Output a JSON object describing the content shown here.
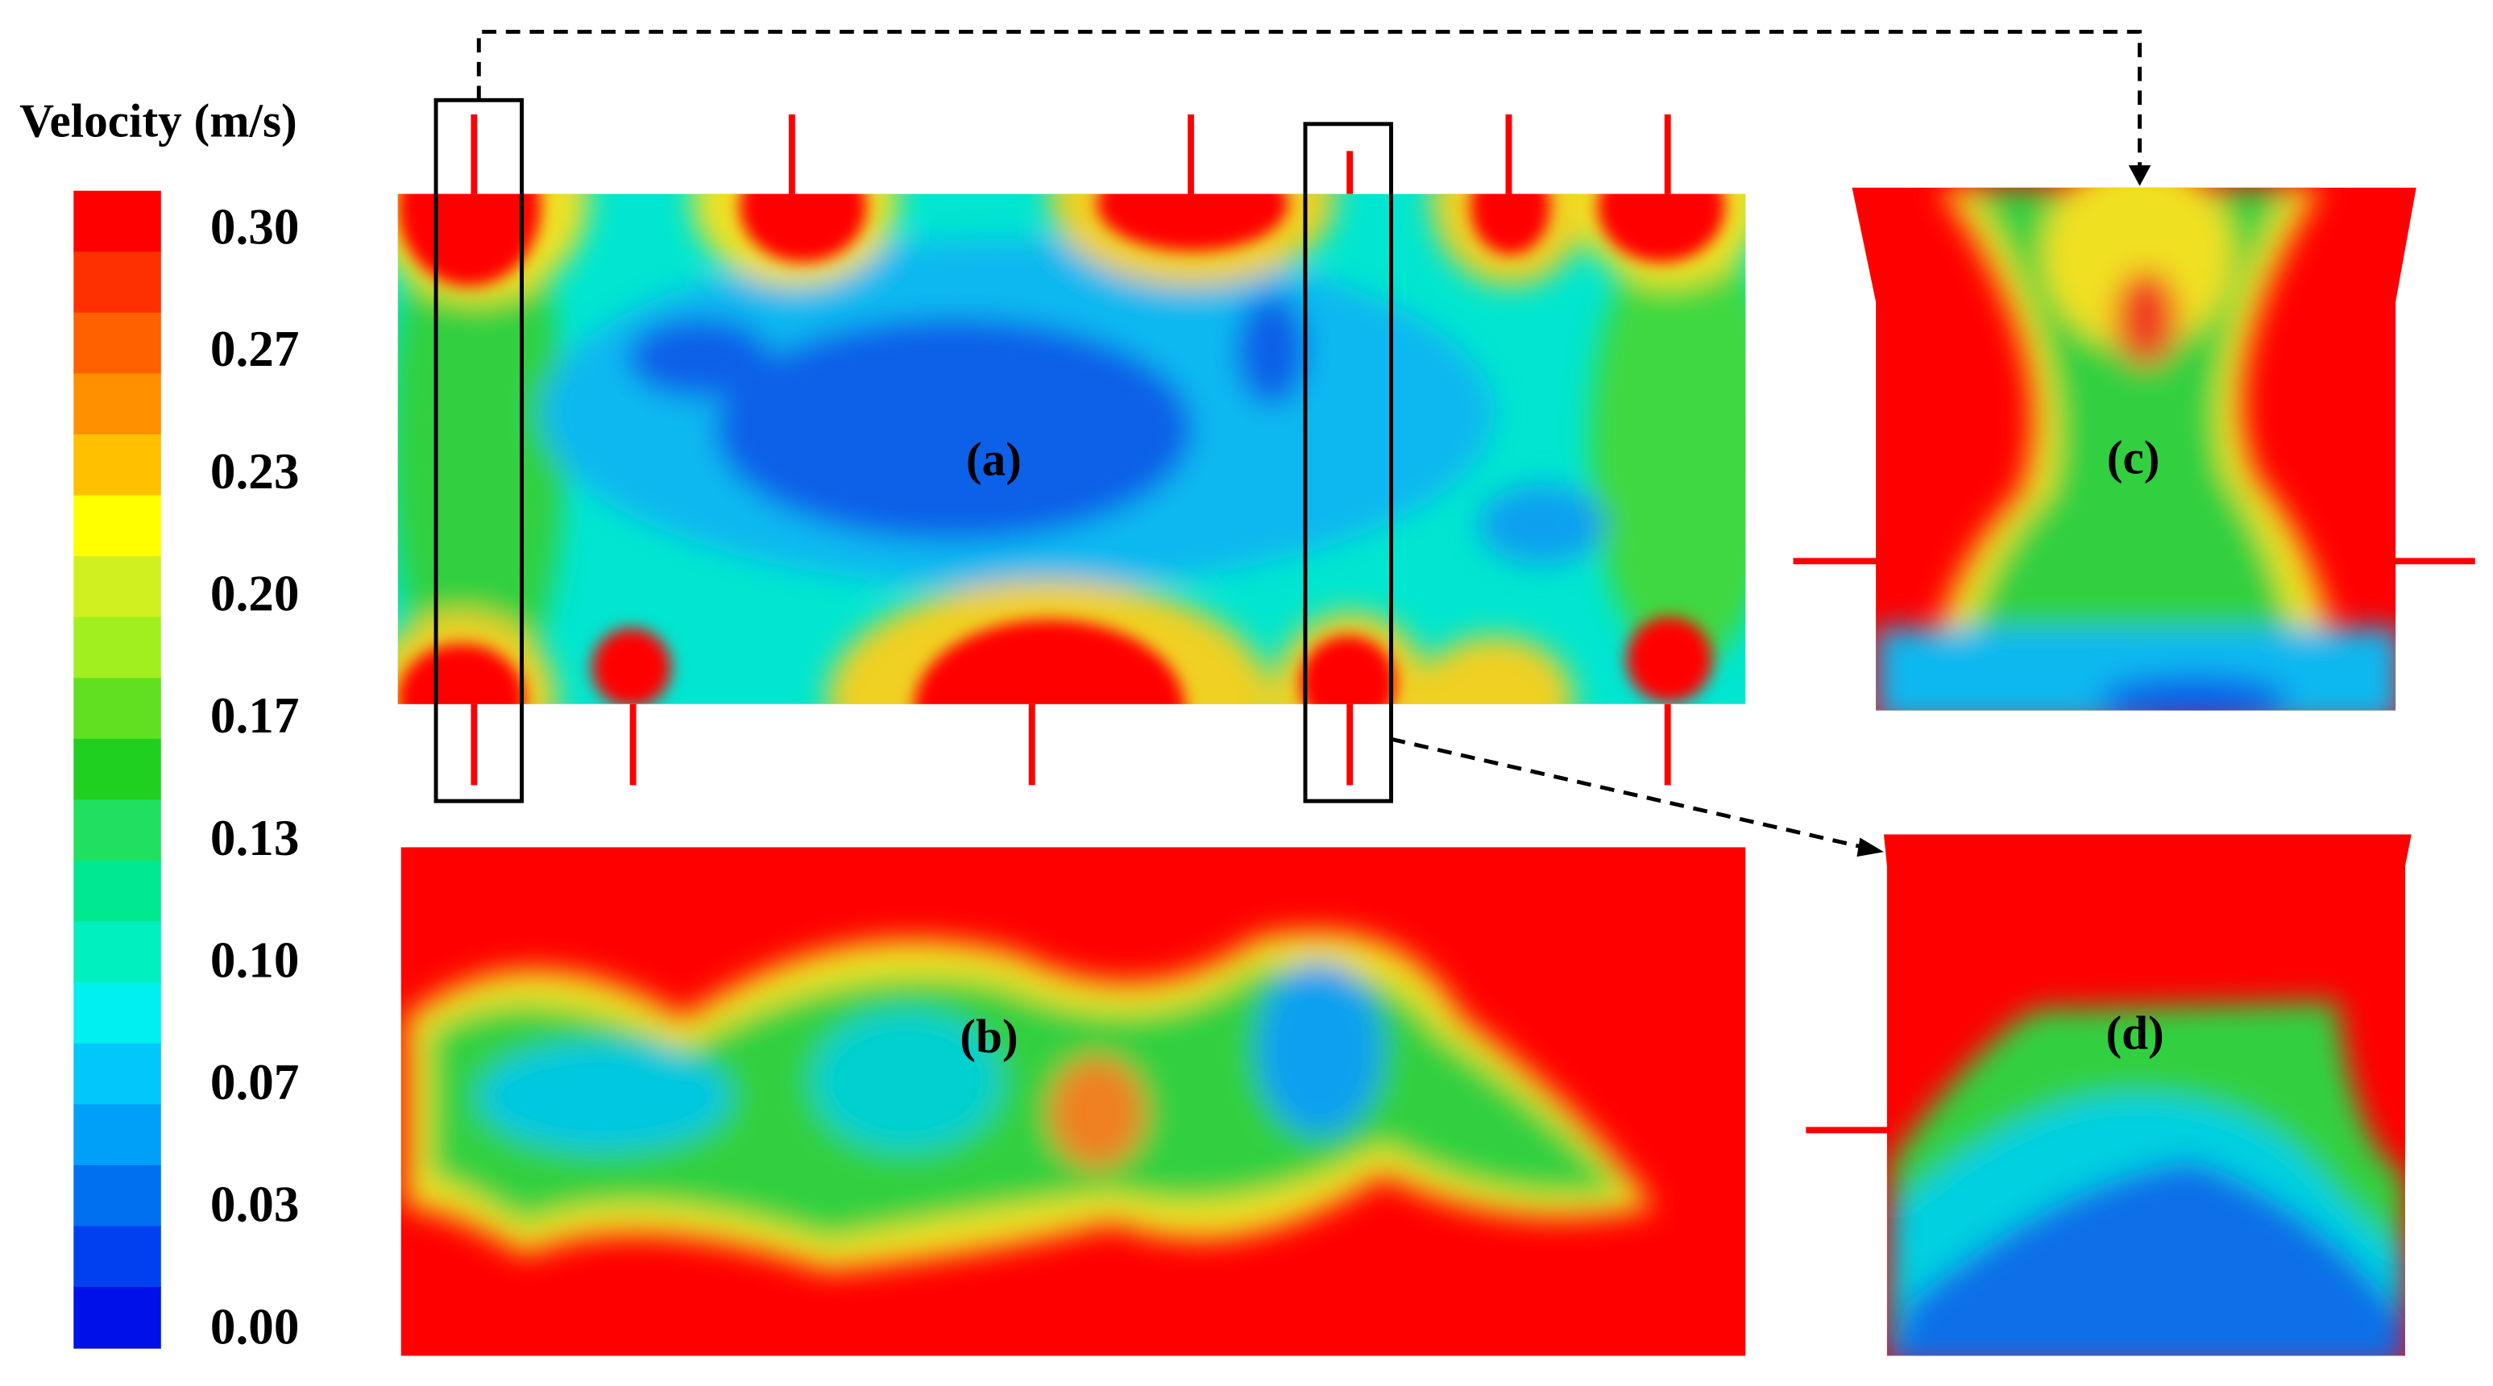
{
  "colorbar": {
    "title": "Velocity (m/s)",
    "ticks": [
      "0.30",
      "0.27",
      "0.23",
      "0.20",
      "0.17",
      "0.13",
      "0.10",
      "0.07",
      "0.03",
      "0.00"
    ]
  },
  "panels": [
    {
      "label": "(a)"
    },
    {
      "label": "(b)"
    },
    {
      "label": "(c)"
    },
    {
      "label": "(d)"
    }
  ]
}
